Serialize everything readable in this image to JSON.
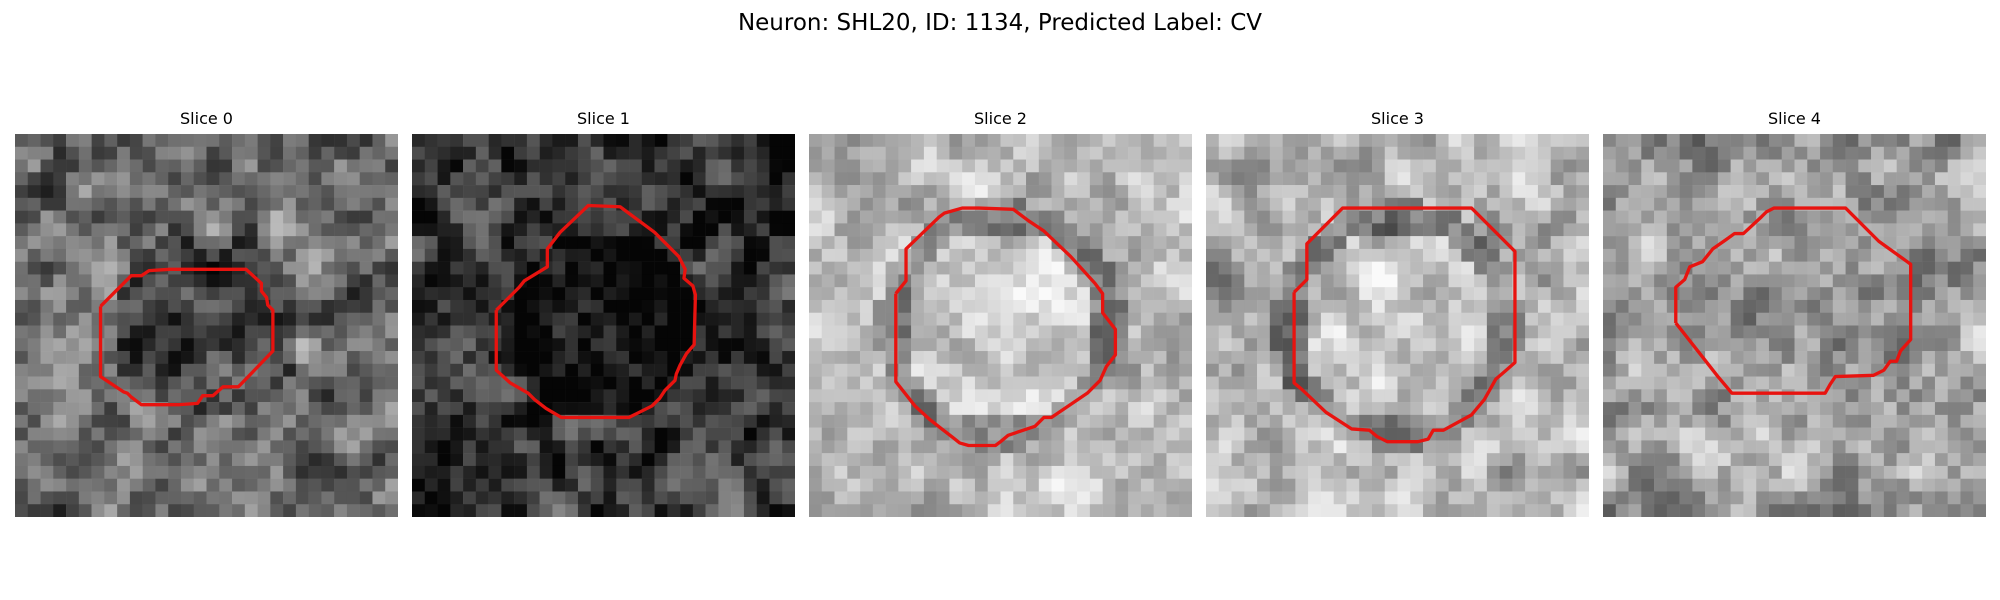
{
  "figure": {
    "suptitle": "Neuron: SHL20, ID: 1134, Predicted Label: CV",
    "contour_color": "#e8130f",
    "colormap": "gray"
  },
  "slices": [
    {
      "title": "Slice 0",
      "seed": 11,
      "brightness": 0.42,
      "contrast": 0.3,
      "dark_center": true,
      "ring": false
    },
    {
      "title": "Slice 1",
      "seed": 23,
      "brightness": 0.22,
      "contrast": 0.28,
      "dark_center": true,
      "ring": false
    },
    {
      "title": "Slice 2",
      "seed": 37,
      "brightness": 0.72,
      "contrast": 0.22,
      "dark_center": false,
      "ring": true
    },
    {
      "title": "Slice 3",
      "seed": 51,
      "brightness": 0.7,
      "contrast": 0.24,
      "dark_center": false,
      "ring": true
    },
    {
      "title": "Slice 4",
      "seed": 67,
      "brightness": 0.62,
      "contrast": 0.26,
      "dark_center": false,
      "ring": false
    }
  ]
}
